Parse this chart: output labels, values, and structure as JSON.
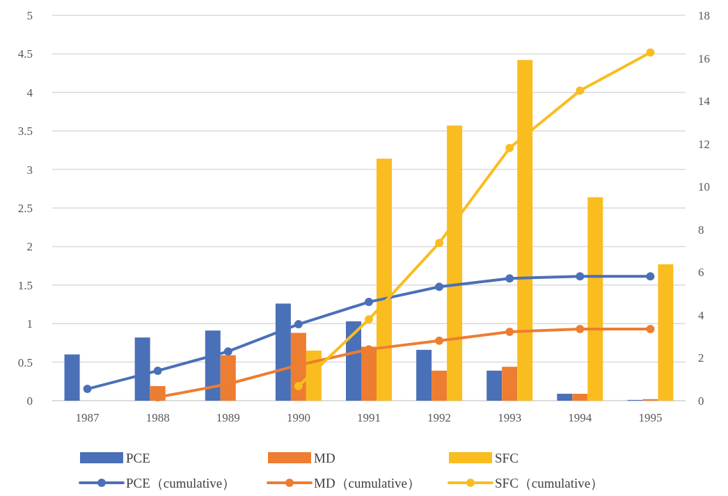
{
  "chart_data": {
    "type": "bar",
    "categories": [
      "1987",
      "1988",
      "1989",
      "1990",
      "1991",
      "1992",
      "1993",
      "1994",
      "1995"
    ],
    "series": [
      {
        "name": "PCE",
        "color": "#4a70b7",
        "values": [
          0.6,
          0.82,
          0.91,
          1.26,
          1.03,
          0.66,
          0.39,
          0.09,
          0.01
        ]
      },
      {
        "name": "MD",
        "color": "#ed7d31",
        "values": [
          null,
          0.19,
          0.59,
          0.88,
          0.7,
          0.39,
          0.44,
          0.09,
          0.02
        ]
      },
      {
        "name": "SFC",
        "color": "#f9bd20",
        "values": [
          null,
          null,
          null,
          0.65,
          3.14,
          3.57,
          4.42,
          2.64,
          1.77
        ]
      },
      {
        "name": "PCE（cumulative）",
        "type": "line",
        "axis": "y2",
        "color": "#4a70b7",
        "values": [
          0.55,
          1.4,
          2.3,
          3.57,
          4.61,
          5.32,
          5.71,
          5.81,
          5.81
        ]
      },
      {
        "name": "MD（cumulative）",
        "type": "line",
        "axis": "y2",
        "color": "#ed7d31",
        "values": [
          null,
          0.16,
          0.78,
          1.66,
          2.4,
          2.8,
          3.22,
          3.35,
          3.35
        ]
      },
      {
        "name": "SFC（cumulative）",
        "type": "line",
        "axis": "y2",
        "color": "#f9bd20",
        "values": [
          null,
          null,
          null,
          0.68,
          3.8,
          7.37,
          11.8,
          14.48,
          16.26
        ]
      }
    ],
    "ylim": [
      0,
      5
    ],
    "yticks": [
      0,
      0.5,
      1,
      1.5,
      2,
      2.5,
      3,
      3.5,
      4,
      4.5,
      5
    ],
    "y2lim": [
      0,
      18
    ],
    "y2ticks": [
      0,
      2,
      4,
      6,
      8,
      10,
      12,
      14,
      16,
      18
    ],
    "grid": "y",
    "legend": "bottom",
    "marker": "circle"
  }
}
